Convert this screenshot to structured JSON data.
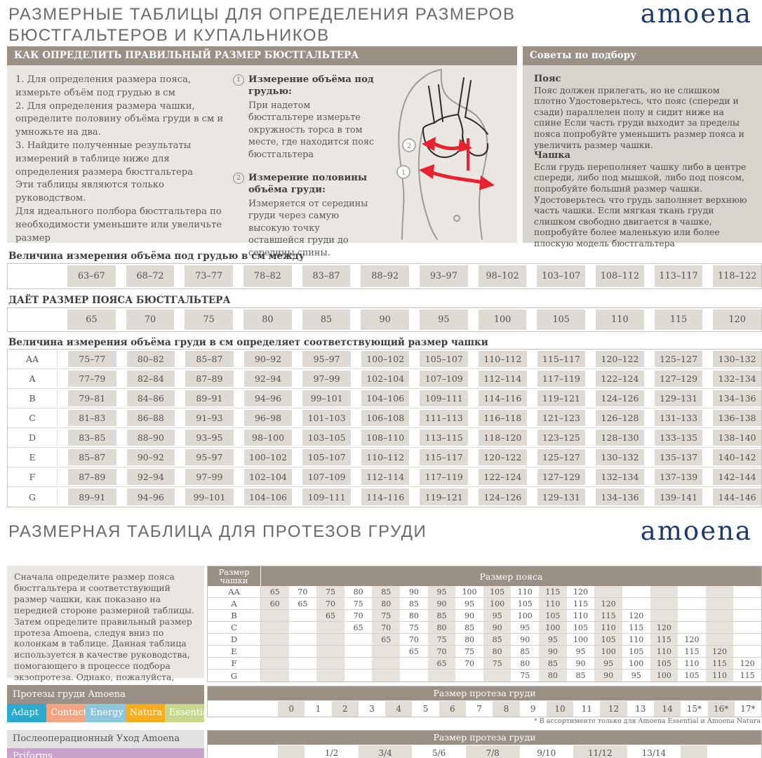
{
  "page": {
    "title_line1": "РАЗМЕРНЫЕ ТАБЛИЦЫ ДЛЯ ОПРЕДЕЛЕНИЯ РАЗМЕРОВ",
    "title_line2": "БЮСТГАЛЬТЕРОВ И КУПАЛЬНИКОВ",
    "brand": "amoena",
    "section2_title": "РАЗМЕРНАЯ ТАБЛИЦА ДЛЯ ПРОТЕЗОВ ГРУДИ"
  },
  "colors": {
    "taupe": "#9A9086",
    "panel_light": "#EAE7E2",
    "panel_dark": "#D8D3CC",
    "cell_beige": "#DFDAD3",
    "stripe_beige": "#E7E2DB",
    "stripe_beige2": "#E2DDD6",
    "navy": "#1F3A6E",
    "arrow_red": "#E8232F",
    "aftercare_gray": "#E3E1DF"
  },
  "how_to": {
    "header": "КАК ОПРЕДЕЛИТЬ ПРАВИЛЬНЫЙ РАЗМЕР БЮСТГАЛЬТЕРА",
    "steps": [
      "1. Для определения размера пояса, измерьте объём под грудью в см",
      "2.  Для определения размера чашки, определите половину объёма груди в см и умножьте на два.",
      "3.  Найдите полученные результаты измерений в таблице ниже для определения размера бюстгальтера",
      "Эти таблицы являются только руководством.",
      "Для идеального полбора бюстгальтера по необходимости уменьшите или увеличьте размер"
    ],
    "measures": [
      {
        "num": "1",
        "title": "Измерение объёма под грудью:",
        "text": "При надетом бюстгальтере измерьте окружность торса в том месте, где находится пояс бюстгальтера"
      },
      {
        "num": "2",
        "title": "Измерение половины объёма груди:",
        "text": "Измеряется от середины груди через самую высокую точку оставшейся груди до середины спины."
      }
    ]
  },
  "tips": {
    "header": "Советы по подбору",
    "belt_title": "Пояс",
    "belt_text": "Пояс должен прилегать, но не слишком плотно Удостоверьтесь, что пояс (спереди и сзади) параллелен полу и сидит ниже на спине Если часть груди выходит за пределы пояса попробуйте уменьшить размер пояса и увеличить размер чашки.",
    "cup_title": "Чашка",
    "cup_text": "Если грудь переполняет чашку либо в центре спереди, либо под мышкой, либо под поясом, попробуйте больший размер чашки. Удостоверьтесь что грудь заполняет верхнюю часть чашки. Если мягкая ткань груди слишком свободно двигается в чашке, попробуйте более маленькую или более плоскую модель бюстгальтера"
  },
  "underbust": {
    "label": "Величина измерения объёма под грудью в см между",
    "values": [
      "63–67",
      "68–72",
      "73–77",
      "78–82",
      "83–87",
      "88–92",
      "93–97",
      "98–102",
      "103–107",
      "108–112",
      "113–117",
      "118–122"
    ]
  },
  "band": {
    "label": "ДАЁТ РАЗМЕР ПОЯСА БЮСТГАЛЬТЕРА",
    "values": [
      "65",
      "70",
      "75",
      "80",
      "85",
      "90",
      "95",
      "100",
      "105",
      "110",
      "115",
      "120"
    ]
  },
  "cup_table": {
    "label": "Величина измерения объёма груди в см определяет соответствующий размер чашки",
    "rows": [
      {
        "cup": "AA",
        "values": [
          "75–77",
          "80–82",
          "85–87",
          "90–92",
          "95–97",
          "100–102",
          "105–107",
          "110–112",
          "115–117",
          "120–122",
          "125–127",
          "130–132"
        ]
      },
      {
        "cup": "A",
        "values": [
          "77–79",
          "82–84",
          "87–89",
          "92–94",
          "97–99",
          "102–104",
          "107–109",
          "112–114",
          "117–119",
          "122–124",
          "127–129",
          "132–134"
        ]
      },
      {
        "cup": "B",
        "values": [
          "79–81",
          "84–86",
          "89–91",
          "94–96",
          "99–101",
          "104–106",
          "109–111",
          "114–116",
          "119–121",
          "124–126",
          "129–131",
          "134–136"
        ]
      },
      {
        "cup": "C",
        "values": [
          "81–83",
          "86–88",
          "91–93",
          "96–98",
          "101–103",
          "106–108",
          "111–113",
          "116–118",
          "121–123",
          "126–128",
          "131–133",
          "136–138"
        ]
      },
      {
        "cup": "D",
        "values": [
          "83–85",
          "88–90",
          "93–95",
          "98–100",
          "103–105",
          "108–110",
          "113–115",
          "118–120",
          "123–125",
          "128–130",
          "133–135",
          "138–140"
        ]
      },
      {
        "cup": "E",
        "values": [
          "85–87",
          "90–92",
          "95–97",
          "100–102",
          "105–107",
          "110–112",
          "115–117",
          "120–122",
          "125–127",
          "130–132",
          "135–137",
          "140–142"
        ]
      },
      {
        "cup": "F",
        "values": [
          "87–89",
          "92–94",
          "97–99",
          "102–104",
          "107–109",
          "112–114",
          "117–119",
          "122–124",
          "127–129",
          "132–134",
          "137–139",
          "142–144"
        ]
      },
      {
        "cup": "G",
        "values": [
          "89–91",
          "94–96",
          "99–101",
          "104–106",
          "109–111",
          "114–116",
          "119–121",
          "124–126",
          "129–131",
          "134–136",
          "139–141",
          "144–146"
        ]
      }
    ]
  },
  "prosthesis_intro": "Сначала определите размер пояса бюстгальтера и соответствующий размер чашки, как показано на передней стороне размерной таблицы. Затем определите правильный размер протеза Amoena, следуя вниз по колонкам в таблице. Данная таблица используется в качестве руководства, помогающего в процессе подбора экзопротеза. Однако, пожалуйста, также полагайтесь на свой опыт и индивидуальные ощущения.",
  "band_matrix": {
    "corner": "Размер чашки",
    "header": "Размер пояса",
    "rows": [
      {
        "cup": "AA",
        "cells": [
          "65",
          "70",
          "75",
          "80",
          "85",
          "90",
          "95",
          "100",
          "105",
          "110",
          "115",
          "120",
          "",
          "",
          "",
          "",
          "",
          ""
        ]
      },
      {
        "cup": "A",
        "cells": [
          "60",
          "65",
          "70",
          "75",
          "80",
          "85",
          "90",
          "95",
          "100",
          "105",
          "110",
          "115",
          "120",
          "",
          "",
          "",
          "",
          ""
        ]
      },
      {
        "cup": "B",
        "cells": [
          "",
          "",
          "65",
          "70",
          "75",
          "80",
          "85",
          "90",
          "95",
          "100",
          "105",
          "110",
          "115",
          "120",
          "",
          "",
          "",
          ""
        ]
      },
      {
        "cup": "C",
        "cells": [
          "",
          "",
          "",
          "65",
          "70",
          "75",
          "80",
          "85",
          "90",
          "95",
          "100",
          "105",
          "110",
          "115",
          "120",
          "",
          "",
          ""
        ]
      },
      {
        "cup": "D",
        "cells": [
          "",
          "",
          "",
          "",
          "65",
          "70",
          "75",
          "80",
          "85",
          "90",
          "95",
          "100",
          "105",
          "110",
          "115",
          "120",
          "",
          ""
        ]
      },
      {
        "cup": "E",
        "cells": [
          "",
          "",
          "",
          "",
          "",
          "65",
          "70",
          "75",
          "80",
          "85",
          "90",
          "95",
          "100",
          "105",
          "110",
          "115",
          "120",
          ""
        ]
      },
      {
        "cup": "F",
        "cells": [
          "",
          "",
          "",
          "",
          "",
          "",
          "65",
          "70",
          "75",
          "80",
          "85",
          "90",
          "95",
          "100",
          "105",
          "110",
          "115",
          "120"
        ]
      },
      {
        "cup": "G",
        "cells": [
          "",
          "",
          "",
          "",
          "",
          "",
          "",
          "",
          "",
          "75",
          "80",
          "85",
          "90",
          "95",
          "100",
          "105",
          "110",
          "115"
        ]
      }
    ]
  },
  "products": {
    "header": "Протезы груди Amoena",
    "tabs": [
      {
        "label": "Adapt",
        "color": "#29AACE"
      },
      {
        "label": "Contact",
        "color": "#F4A381"
      },
      {
        "label": "Energy",
        "color": "#8BC6DD"
      },
      {
        "label": "Natura",
        "color": "#F6AE1F"
      },
      {
        "label": "Essential",
        "color": "#C7D88C"
      }
    ]
  },
  "size_row": {
    "header": "Размер протеза груди",
    "values": [
      "0",
      "1",
      "2",
      "3",
      "4",
      "5",
      "6",
      "7",
      "8",
      "9",
      "10",
      "11",
      "12",
      "13",
      "14",
      "15*",
      "16*",
      "17*"
    ],
    "footnote": "* В ассортименте только для  Amoena Essential и Amoena Natura"
  },
  "aftercare": {
    "header": "Послеоперационный Уход Amoena",
    "tab": {
      "label": "Priforms",
      "color": "#C8A3CB"
    }
  },
  "fraction_row": {
    "header": "Размер протеза груди",
    "values": [
      "1/2",
      "3/4",
      "5/6",
      "7/8",
      "9/10",
      "11/12",
      "13/14"
    ]
  }
}
